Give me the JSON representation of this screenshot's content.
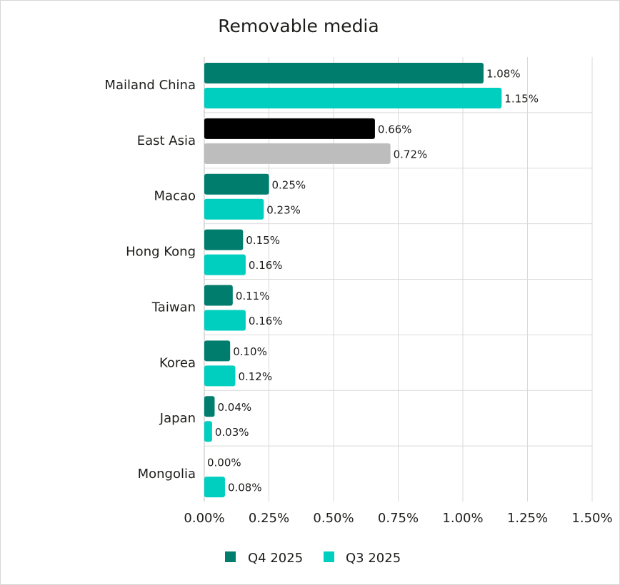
{
  "chart_data": {
    "type": "bar",
    "orientation": "horizontal",
    "title": "Removable media",
    "xlabel": "",
    "ylabel": "",
    "categories": [
      "Mailand China",
      "East Asia",
      "Macao",
      "Hong Kong",
      "Taiwan",
      "Korea",
      "Japan",
      "Mongolia"
    ],
    "series": [
      {
        "name": "Q4 2025",
        "color": "#007d6d",
        "values": [
          1.08,
          0.66,
          0.25,
          0.15,
          0.11,
          0.1,
          0.04,
          0.0
        ],
        "labels": [
          "1.08%",
          "0.66%",
          "0.25%",
          "0.15%",
          "0.11%",
          "0.10%",
          "0.04%",
          "0.00%"
        ]
      },
      {
        "name": "Q3 2025",
        "color": "#00cfc0",
        "values": [
          1.15,
          0.72,
          0.23,
          0.16,
          0.16,
          0.12,
          0.03,
          0.08
        ],
        "labels": [
          "1.15%",
          "0.72%",
          "0.23%",
          "0.16%",
          "0.16%",
          "0.12%",
          "0.03%",
          "0.08%"
        ]
      }
    ],
    "highlight": {
      "category": "East Asia",
      "colors": [
        "#000000",
        "#bdbdbd"
      ]
    },
    "xlim": [
      0,
      1.5
    ],
    "xticks": [
      "0.00%",
      "0.25%",
      "0.50%",
      "0.75%",
      "1.00%",
      "1.25%",
      "1.50%"
    ],
    "grid": true,
    "legend_position": "bottom"
  }
}
